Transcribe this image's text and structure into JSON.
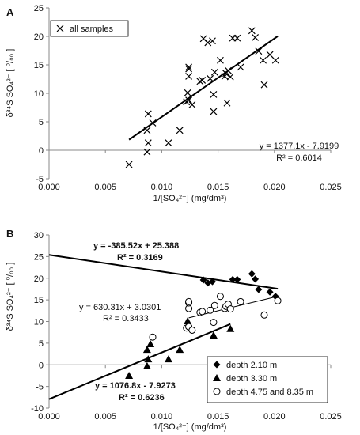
{
  "chart_data": [
    {
      "panel": "A",
      "type": "scatter",
      "xlabel": "1/[SO₄²⁻]  (mg/dm³)",
      "ylabel": "δ³⁴S SO₄²⁻ [ ⁰/₀₀ ]",
      "xlim": [
        0.0,
        0.025
      ],
      "ylim": [
        -5,
        25
      ],
      "xticks": [
        "0.000",
        "0.005",
        "0.010",
        "0.015",
        "0.020",
        "0.025"
      ],
      "yticks": [
        "-5",
        "0",
        "5",
        "10",
        "15",
        "20",
        "25"
      ],
      "legend": "top-left",
      "series": [
        {
          "name": "all samples",
          "marker": "x",
          "points": [
            [
              0.0071,
              -2.5
            ],
            [
              0.0087,
              -0.3
            ],
            [
              0.0088,
              1.3
            ],
            [
              0.0087,
              3.5
            ],
            [
              0.0088,
              6.4
            ],
            [
              0.0092,
              4.8
            ],
            [
              0.0106,
              1.3
            ],
            [
              0.0116,
              3.5
            ],
            [
              0.0122,
              8.5
            ],
            [
              0.0123,
              10.1
            ],
            [
              0.0124,
              8.8
            ],
            [
              0.0124,
              13.0
            ],
            [
              0.0124,
              14.3
            ],
            [
              0.0124,
              14.6
            ],
            [
              0.0127,
              8.0
            ],
            [
              0.0134,
              12.1
            ],
            [
              0.0136,
              12.3
            ],
            [
              0.0137,
              19.6
            ],
            [
              0.0141,
              18.9
            ],
            [
              0.0143,
              12.6
            ],
            [
              0.0145,
              19.2
            ],
            [
              0.0146,
              6.8
            ],
            [
              0.0146,
              9.8
            ],
            [
              0.0147,
              13.7
            ],
            [
              0.0152,
              15.8
            ],
            [
              0.0156,
              13.0
            ],
            [
              0.0157,
              13.5
            ],
            [
              0.0158,
              8.3
            ],
            [
              0.0159,
              14.0
            ],
            [
              0.0161,
              12.9
            ],
            [
              0.0163,
              19.7
            ],
            [
              0.0167,
              19.7
            ],
            [
              0.017,
              14.6
            ],
            [
              0.018,
              21.0
            ],
            [
              0.0183,
              19.8
            ],
            [
              0.0186,
              17.4
            ],
            [
              0.019,
              15.8
            ],
            [
              0.0191,
              11.5
            ],
            [
              0.0196,
              16.8
            ],
            [
              0.0201,
              15.8
            ]
          ]
        }
      ],
      "trend": [
        {
          "slope": 1377.1,
          "intercept": -7.9199,
          "x_range": [
            0.0071,
            0.0203
          ],
          "equation": "y = 1377.1x - 7.9199",
          "r2": "R² = 0.6014"
        }
      ]
    },
    {
      "panel": "B",
      "type": "scatter",
      "xlabel": "1/[SO₄²⁻]  (mg/dm³)",
      "ylabel": "δ³⁴S SO₄²⁻ [ ⁰/₀₀ ]",
      "xlim": [
        0.0,
        0.025
      ],
      "ylim": [
        -10,
        30
      ],
      "xticks": [
        "0.000",
        "0.005",
        "0.010",
        "0.015",
        "0.020",
        "0.025"
      ],
      "yticks": [
        "-10",
        "-5",
        "0",
        "5",
        "10",
        "15",
        "20",
        "25",
        "30"
      ],
      "legend": "bottom-right",
      "series": [
        {
          "name": "depth 2.10 m",
          "marker": "diamond",
          "points": [
            [
              0.0137,
              19.6
            ],
            [
              0.0141,
              18.9
            ],
            [
              0.0145,
              19.2
            ],
            [
              0.0163,
              19.7
            ],
            [
              0.0167,
              19.7
            ],
            [
              0.018,
              21.0
            ],
            [
              0.0183,
              19.8
            ],
            [
              0.0186,
              17.4
            ],
            [
              0.0196,
              16.8
            ],
            [
              0.0201,
              15.8
            ]
          ]
        },
        {
          "name": "depth 3.30 m",
          "marker": "triangle",
          "points": [
            [
              0.0071,
              -2.5
            ],
            [
              0.0087,
              -0.3
            ],
            [
              0.0088,
              1.3
            ],
            [
              0.0087,
              3.5
            ],
            [
              0.009,
              4.8
            ],
            [
              0.0106,
              1.3
            ],
            [
              0.0116,
              3.5
            ],
            [
              0.0123,
              10.1
            ],
            [
              0.0146,
              6.8
            ],
            [
              0.0161,
              8.3
            ]
          ]
        },
        {
          "name": "depth 4.75 and 8.35 m",
          "marker": "circle",
          "points": [
            [
              0.0092,
              6.4
            ],
            [
              0.0122,
              8.5
            ],
            [
              0.0124,
              8.8
            ],
            [
              0.0124,
              13.0
            ],
            [
              0.0124,
              14.3
            ],
            [
              0.0124,
              14.6
            ],
            [
              0.0127,
              8.0
            ],
            [
              0.0134,
              12.1
            ],
            [
              0.0136,
              12.3
            ],
            [
              0.0143,
              12.6
            ],
            [
              0.0146,
              9.8
            ],
            [
              0.0147,
              13.7
            ],
            [
              0.0152,
              15.8
            ],
            [
              0.0156,
              13.0
            ],
            [
              0.0157,
              13.5
            ],
            [
              0.0159,
              14.0
            ],
            [
              0.0161,
              12.9
            ],
            [
              0.017,
              14.6
            ],
            [
              0.0191,
              11.5
            ],
            [
              0.0203,
              14.8
            ]
          ]
        }
      ],
      "trend": [
        {
          "slope": -385.52,
          "intercept": 25.388,
          "x_range": [
            0.0,
            0.0203
          ],
          "equation": "y = -385.52x + 25.388",
          "r2": "R² = 0.3169",
          "bold": true
        },
        {
          "slope": 630.31,
          "intercept": 3.0301,
          "x_range": [
            0.0124,
            0.0203
          ],
          "equation": "y = 630.31x + 3.0301",
          "r2": "R² = 0.3433",
          "bold": false
        },
        {
          "slope": 1076.8,
          "intercept": -7.9273,
          "x_range": [
            0.0,
            0.0161
          ],
          "equation": "y = 1076.8x - 7.9273",
          "r2": "R² = 0.6236",
          "bold": true
        }
      ]
    }
  ]
}
